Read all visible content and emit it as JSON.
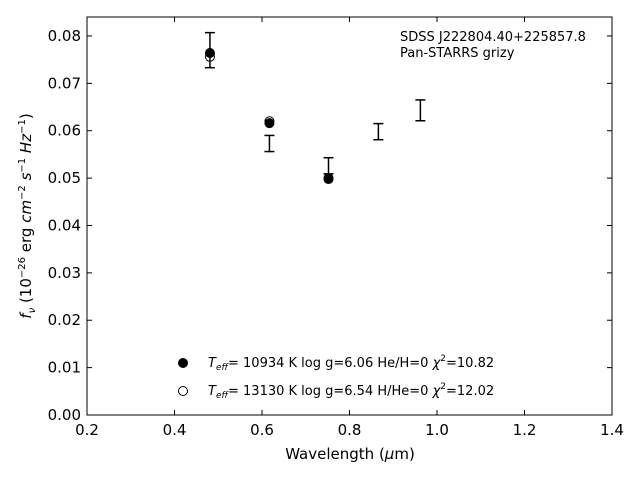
{
  "chart_data": {
    "type": "scatter",
    "xlabel": "Wavelength (",
    "xlabel_unit": "m)",
    "xlabel_mu": "μ",
    "ylabel": "f_ν (10^−26 erg cm^−2 s^−1 Hz^−1)",
    "xlim": [
      0.2,
      1.4
    ],
    "ylim": [
      0.0,
      0.084
    ],
    "x_ticks": [
      0.2,
      0.4,
      0.6,
      0.8,
      1.0,
      1.2,
      1.4
    ],
    "x_tick_labels": [
      "0.2",
      "0.4",
      "0.6",
      "0.8",
      "1.0",
      "1.2",
      "1.4"
    ],
    "y_ticks": [
      0.0,
      0.01,
      0.02,
      0.03,
      0.04,
      0.05,
      0.06,
      0.07,
      0.08
    ],
    "y_tick_labels": [
      "0.00",
      "0.01",
      "0.02",
      "0.03",
      "0.04",
      "0.05",
      "0.06",
      "0.07",
      "0.08"
    ],
    "grid": false,
    "annotations": [
      "SDSS J222804.40+225857.8",
      "Pan-STARRS grizy"
    ],
    "observed": [
      {
        "x": 0.481,
        "y": 0.077,
        "yerr": 0.0037
      },
      {
        "x": 0.617,
        "y": 0.0573,
        "yerr": 0.0017
      },
      {
        "x": 0.752,
        "y": 0.0526,
        "yerr": 0.0017
      },
      {
        "x": 0.866,
        "y": 0.0598,
        "yerr": 0.0017
      },
      {
        "x": 0.962,
        "y": 0.0643,
        "yerr": 0.0022
      }
    ],
    "series": [
      {
        "marker": "filled-circle",
        "x": [
          0.481,
          0.617,
          0.752
        ],
        "y": [
          0.0764,
          0.0616,
          0.0498
        ]
      },
      {
        "marker": "open-circle",
        "x": [
          0.481,
          0.617,
          0.752
        ],
        "y": [
          0.0756,
          0.062,
          0.05
        ]
      }
    ],
    "legend": [
      {
        "marker": "filled-circle",
        "teff_prefix": "T",
        "teff_sub": "eff",
        "text": "= 10934 K  log g=6.06  He/H=0  ",
        "chi": "χ",
        "chi_sup": "2",
        "chi_val": "=10.82"
      },
      {
        "marker": "open-circle",
        "teff_prefix": "T",
        "teff_sub": "eff",
        "text": "= 13130 K  log g=6.54  H/He=0  ",
        "chi": "χ",
        "chi_sup": "2",
        "chi_val": "=12.02"
      }
    ],
    "legend_position": "bottom-center"
  }
}
